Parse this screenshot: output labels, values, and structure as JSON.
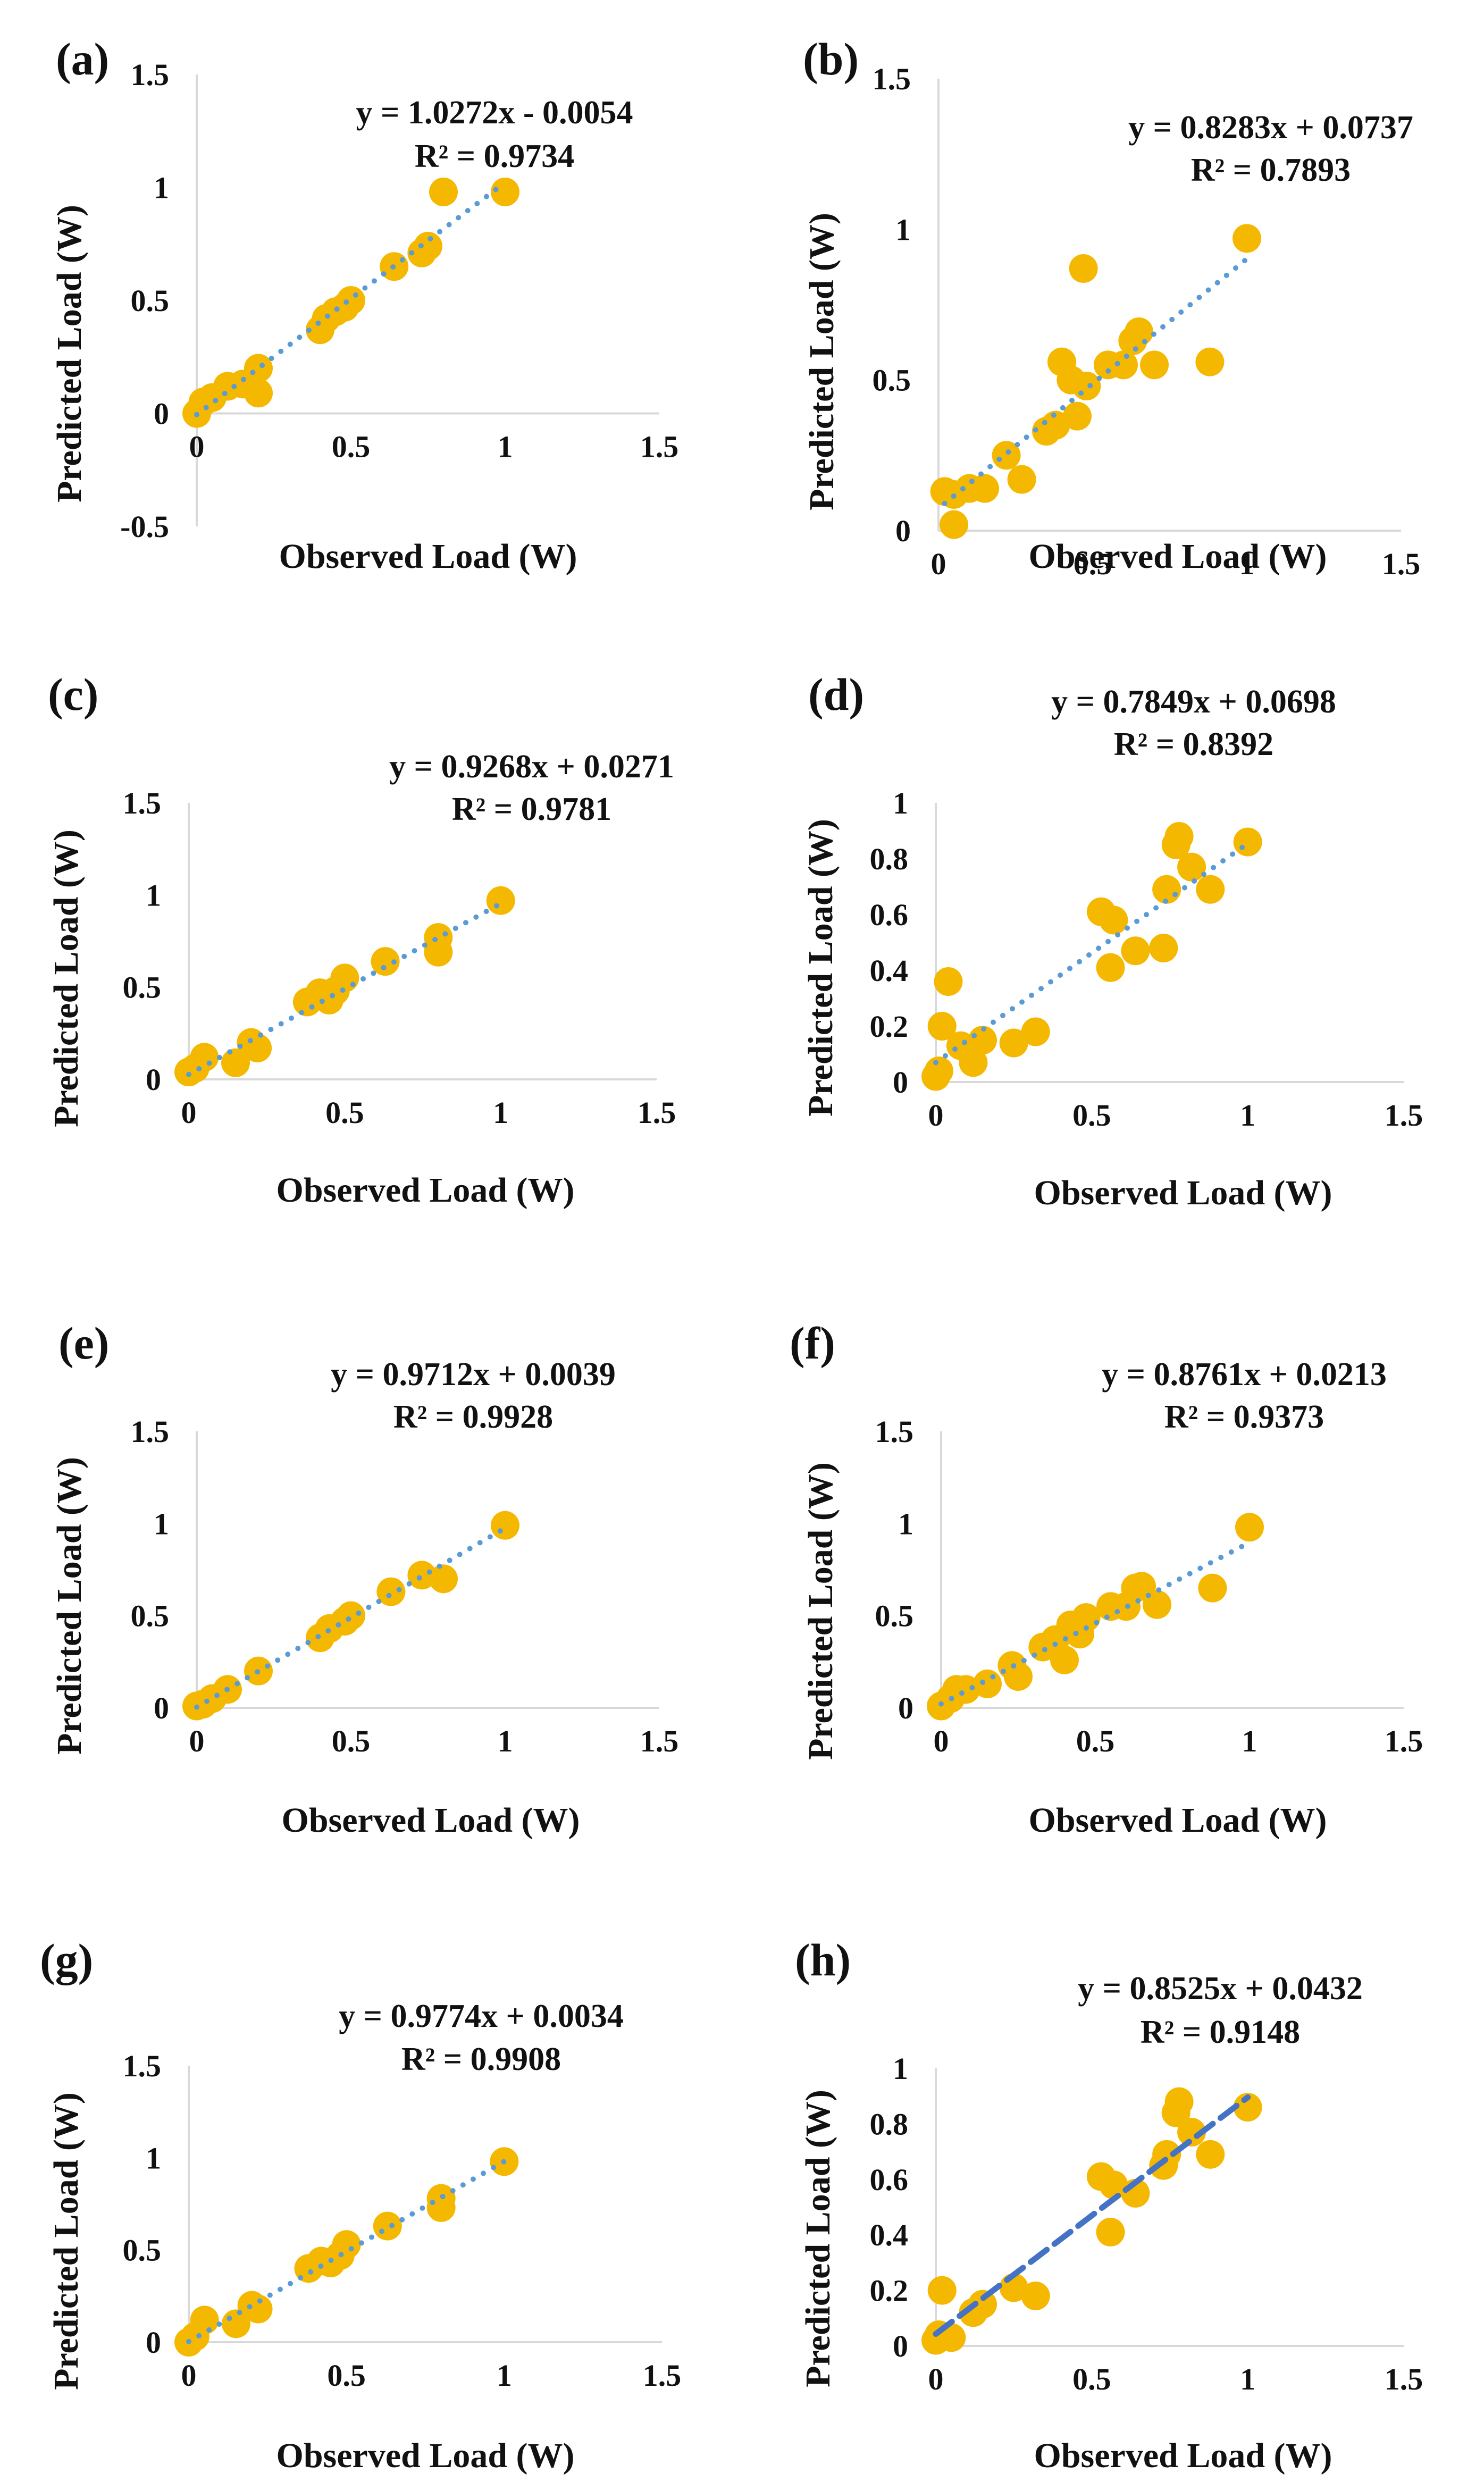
{
  "colors": {
    "point": "#F5B800",
    "trend": "#5B9BD5",
    "trend_dashed": "#4472C4",
    "axis": "#D9D9D9",
    "text": "#111111"
  },
  "chart_data": [
    {
      "panel": "(a)",
      "type": "scatter",
      "xlabel": "Observed Load (W)",
      "ylabel": "Predicted Load (W)",
      "xlim": [
        0,
        1.5
      ],
      "ylim": [
        -0.5,
        1.5
      ],
      "xticks": [
        "0",
        "0.5",
        "1",
        "1.5"
      ],
      "yticks": [
        "-0.5",
        "0",
        "0.5",
        "1",
        "1.5"
      ],
      "xtick_values": [
        0,
        0.5,
        1,
        1.5
      ],
      "ytick_values": [
        -0.5,
        0,
        0.5,
        1,
        1.5
      ],
      "equation": "y = 1.0272x - 0.0054",
      "r2": "R² = 0.9734",
      "trend": {
        "slope": 1.0272,
        "intercept": -0.0054,
        "style": "dotted"
      },
      "x": [
        0.0,
        0.02,
        0.05,
        0.1,
        0.15,
        0.2,
        0.2,
        0.4,
        0.42,
        0.45,
        0.48,
        0.5,
        0.64,
        0.73,
        0.75,
        0.8,
        1.0
      ],
      "y": [
        0.0,
        0.05,
        0.07,
        0.12,
        0.13,
        0.2,
        0.09,
        0.37,
        0.42,
        0.45,
        0.47,
        0.5,
        0.65,
        0.71,
        0.74,
        0.98,
        0.98
      ]
    },
    {
      "panel": "(b)",
      "type": "scatter",
      "xlabel": "Observed Load (W)",
      "ylabel": "Predicted Load (W)",
      "xlim": [
        0,
        1.5
      ],
      "ylim": [
        0,
        1.5
      ],
      "xticks": [
        "0",
        "0.5",
        "1",
        "1.5"
      ],
      "yticks": [
        "0",
        "0.5",
        "1",
        "1.5"
      ],
      "xtick_values": [
        0,
        0.5,
        1,
        1.5
      ],
      "ytick_values": [
        0,
        0.5,
        1,
        1.5
      ],
      "equation": "y = 0.8283x + 0.0737",
      "r2": "R² = 0.7893",
      "trend": {
        "slope": 0.8283,
        "intercept": 0.0737,
        "style": "dotted"
      },
      "x": [
        0.02,
        0.05,
        0.05,
        0.1,
        0.15,
        0.22,
        0.27,
        0.35,
        0.38,
        0.4,
        0.43,
        0.45,
        0.47,
        0.48,
        0.55,
        0.6,
        0.63,
        0.65,
        0.7,
        0.88,
        1.0
      ],
      "y": [
        0.13,
        0.12,
        0.02,
        0.14,
        0.14,
        0.25,
        0.17,
        0.33,
        0.35,
        0.56,
        0.5,
        0.38,
        0.87,
        0.48,
        0.55,
        0.55,
        0.63,
        0.66,
        0.55,
        0.56,
        0.97
      ]
    },
    {
      "panel": "(c)",
      "type": "scatter",
      "xlabel": "Observed Load (W)",
      "ylabel": "Predicted Load (W)",
      "xlim": [
        0,
        1.5
      ],
      "ylim": [
        0,
        1.5
      ],
      "xticks": [
        "0",
        "0.5",
        "1",
        "1.5"
      ],
      "yticks": [
        "0",
        "0.5",
        "1",
        "1.5"
      ],
      "xtick_values": [
        0,
        0.5,
        1,
        1.5
      ],
      "ytick_values": [
        0,
        0.5,
        1,
        1.5
      ],
      "equation": "y = 0.9268x + 0.0271",
      "r2": "R² = 0.9781",
      "trend": {
        "slope": 0.9268,
        "intercept": 0.0271,
        "style": "dotted"
      },
      "x": [
        0.0,
        0.02,
        0.05,
        0.15,
        0.2,
        0.22,
        0.38,
        0.42,
        0.45,
        0.47,
        0.5,
        0.63,
        0.8,
        0.8,
        1.0
      ],
      "y": [
        0.04,
        0.06,
        0.12,
        0.09,
        0.2,
        0.17,
        0.42,
        0.47,
        0.43,
        0.48,
        0.55,
        0.64,
        0.69,
        0.77,
        0.97
      ]
    },
    {
      "panel": "(d)",
      "type": "scatter",
      "xlabel": "Observed Load (W)",
      "ylabel": "Predicted Load (W)",
      "xlim": [
        0,
        1.5
      ],
      "ylim": [
        0,
        1
      ],
      "xticks": [
        "0",
        "0.5",
        "1",
        "1.5"
      ],
      "yticks": [
        "0",
        "0.2",
        "0.4",
        "0.6",
        "0.8",
        "1"
      ],
      "xtick_values": [
        0,
        0.5,
        1,
        1.5
      ],
      "ytick_values": [
        0,
        0.2,
        0.4,
        0.6,
        0.8,
        1
      ],
      "equation": "y = 0.7849x + 0.0698",
      "r2": "R² = 0.8392",
      "trend": {
        "slope": 0.7849,
        "intercept": 0.0698,
        "style": "dotted"
      },
      "x": [
        0.0,
        0.01,
        0.02,
        0.04,
        0.08,
        0.12,
        0.15,
        0.25,
        0.32,
        0.53,
        0.56,
        0.57,
        0.64,
        0.73,
        0.74,
        0.77,
        0.78,
        0.82,
        0.88,
        1.0
      ],
      "y": [
        0.02,
        0.04,
        0.2,
        0.36,
        0.13,
        0.07,
        0.15,
        0.14,
        0.18,
        0.61,
        0.41,
        0.58,
        0.47,
        0.48,
        0.69,
        0.85,
        0.88,
        0.77,
        0.69,
        0.86
      ]
    },
    {
      "panel": "(e)",
      "type": "scatter",
      "xlabel": "Observed Load (W)",
      "ylabel": "Predicted Load (W)",
      "xlim": [
        0,
        1.5
      ],
      "ylim": [
        0,
        1.5
      ],
      "xticks": [
        "0",
        "0.5",
        "1",
        "1.5"
      ],
      "yticks": [
        "0",
        "0.5",
        "1",
        "1.5"
      ],
      "xtick_values": [
        0,
        0.5,
        1,
        1.5
      ],
      "ytick_values": [
        0,
        0.5,
        1,
        1.5
      ],
      "equation": "y = 0.9712x + 0.0039",
      "r2": "R² = 0.9928",
      "trend": {
        "slope": 0.9712,
        "intercept": 0.0039,
        "style": "dotted"
      },
      "x": [
        0.0,
        0.02,
        0.05,
        0.1,
        0.2,
        0.4,
        0.43,
        0.48,
        0.5,
        0.63,
        0.73,
        0.8,
        1.0
      ],
      "y": [
        0.01,
        0.02,
        0.05,
        0.1,
        0.2,
        0.38,
        0.43,
        0.47,
        0.5,
        0.63,
        0.72,
        0.7,
        0.99
      ]
    },
    {
      "panel": "(f)",
      "type": "scatter",
      "xlabel": "Observed Load (W)",
      "ylabel": "Predicted Load (W)",
      "xlim": [
        0,
        1.5
      ],
      "ylim": [
        0,
        1.5
      ],
      "xticks": [
        "0",
        "0.5",
        "1",
        "1.5"
      ],
      "yticks": [
        "0",
        "0.5",
        "1",
        "1.5"
      ],
      "xtick_values": [
        0,
        0.5,
        1,
        1.5
      ],
      "ytick_values": [
        0,
        0.5,
        1,
        1.5
      ],
      "equation": "y = 0.8761x + 0.0213",
      "r2": "R² = 0.9373",
      "trend": {
        "slope": 0.8761,
        "intercept": 0.0213,
        "style": "dotted"
      },
      "x": [
        0.0,
        0.03,
        0.05,
        0.08,
        0.15,
        0.23,
        0.25,
        0.33,
        0.37,
        0.4,
        0.42,
        0.45,
        0.47,
        0.55,
        0.6,
        0.63,
        0.65,
        0.7,
        0.88,
        1.0
      ],
      "y": [
        0.01,
        0.05,
        0.1,
        0.1,
        0.13,
        0.23,
        0.17,
        0.33,
        0.37,
        0.26,
        0.45,
        0.4,
        0.49,
        0.55,
        0.55,
        0.65,
        0.66,
        0.56,
        0.65,
        0.98
      ]
    },
    {
      "panel": "(g)",
      "type": "scatter",
      "xlabel": "Observed Load (W)",
      "ylabel": "Predicted Load (W)",
      "xlim": [
        0,
        1.5
      ],
      "ylim": [
        0,
        1.5
      ],
      "xticks": [
        "0",
        "0.5",
        "1",
        "1.5"
      ],
      "yticks": [
        "0",
        "0.5",
        "1",
        "1.5"
      ],
      "xtick_values": [
        0,
        0.5,
        1,
        1.5
      ],
      "ytick_values": [
        0,
        0.5,
        1,
        1.5
      ],
      "equation": "y = 0.9774x + 0.0034",
      "r2": "R² = 0.9908",
      "trend": {
        "slope": 0.9774,
        "intercept": 0.0034,
        "style": "dotted"
      },
      "x": [
        0.0,
        0.02,
        0.05,
        0.15,
        0.2,
        0.22,
        0.38,
        0.42,
        0.45,
        0.48,
        0.5,
        0.63,
        0.8,
        0.8,
        1.0
      ],
      "y": [
        0.0,
        0.03,
        0.12,
        0.1,
        0.2,
        0.18,
        0.4,
        0.44,
        0.43,
        0.47,
        0.53,
        0.63,
        0.73,
        0.78,
        0.98
      ]
    },
    {
      "panel": "(h)",
      "type": "scatter",
      "xlabel": "Observed Load (W)",
      "ylabel": "Predicted Load (W)",
      "xlim": [
        0,
        1.5
      ],
      "ylim": [
        0,
        1
      ],
      "xticks": [
        "0",
        "0.5",
        "1",
        "1.5"
      ],
      "yticks": [
        "0",
        "0.2",
        "0.4",
        "0.6",
        "0.8",
        "1"
      ],
      "xtick_values": [
        0,
        0.5,
        1,
        1.5
      ],
      "ytick_values": [
        0,
        0.2,
        0.4,
        0.6,
        0.8,
        1
      ],
      "equation": "y = 0.8525x + 0.0432",
      "r2": "R² = 0.9148",
      "trend": {
        "slope": 0.8525,
        "intercept": 0.0432,
        "style": "dashed"
      },
      "x": [
        0.0,
        0.01,
        0.02,
        0.05,
        0.12,
        0.15,
        0.25,
        0.32,
        0.53,
        0.56,
        0.57,
        0.64,
        0.73,
        0.74,
        0.77,
        0.78,
        0.82,
        0.88,
        1.0
      ],
      "y": [
        0.02,
        0.04,
        0.2,
        0.03,
        0.12,
        0.15,
        0.21,
        0.18,
        0.61,
        0.41,
        0.58,
        0.55,
        0.65,
        0.69,
        0.84,
        0.88,
        0.77,
        0.69,
        0.86
      ]
    }
  ]
}
